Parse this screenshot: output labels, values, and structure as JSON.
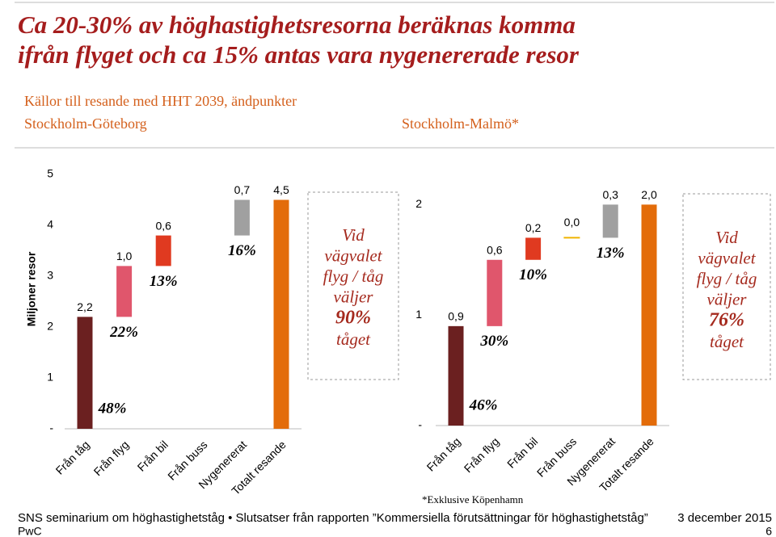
{
  "slide": {
    "title_lines": [
      "Ca 20-30% av höghastighetsresorna beräknas komma",
      "ifrån flyget och ca 15% antas vara nygenererade resor"
    ],
    "subtitle": "Källor till resande med HHT 2039, ändpunkter",
    "footnote": "*Exklusive Köpenhamn",
    "footer": "SNS seminarium om höghastighetståg • Slutsatser från rapporten ”Kommersiella förutsättningar för höghastighetståg”",
    "date": "3 december 2015",
    "company": "PwC",
    "page_number": "6"
  },
  "chart_data": [
    {
      "type": "waterfall",
      "title": "Stockholm-Göteborg",
      "y_label": "Miljoner resor",
      "categories": [
        "Från tåg",
        "Från flyg",
        "Från bil",
        "Från buss",
        "Nygenererat",
        "Totalt resande"
      ],
      "values": [
        2.2,
        1.0,
        0.6,
        null,
        0.7,
        4.5
      ],
      "value_labels": [
        "2,2",
        "1,0",
        "0,6",
        null,
        "0,7",
        "4,5"
      ],
      "shares": [
        48,
        22,
        13,
        null,
        16,
        null
      ],
      "share_labels": [
        "48%",
        "22%",
        "13%",
        null,
        "16%",
        null
      ],
      "colors": [
        "#6b2020",
        "#e0566c",
        "#e03a20",
        "#f0b400",
        "#a0a0a0",
        "#e36c0a"
      ],
      "ylim": [
        0,
        5
      ],
      "yticks": [
        {
          "value": 0,
          "label": "-"
        },
        1,
        2,
        3,
        4,
        5
      ],
      "note_lines": [
        "Vid",
        "vägvalet",
        "flyg / tåg",
        "väljer",
        "90%",
        "tåget"
      ]
    },
    {
      "type": "waterfall",
      "title": "Stockholm-Malmö*",
      "categories": [
        "Från tåg",
        "Från flyg",
        "Från bil",
        "Från buss",
        "Nygenererat",
        "Totalt resande"
      ],
      "values": [
        0.9,
        0.6,
        0.2,
        0.0,
        0.3,
        2.0
      ],
      "value_labels": [
        "0,9",
        "0,6",
        "0,2",
        "0,0",
        "0,3",
        "2,0"
      ],
      "shares": [
        46,
        30,
        10,
        null,
        13,
        null
      ],
      "share_labels": [
        "46%",
        "30%",
        "10%",
        null,
        "13%",
        null
      ],
      "colors": [
        "#6b2020",
        "#e0566c",
        "#e03a20",
        "#f0b400",
        "#a0a0a0",
        "#e36c0a"
      ],
      "ylim": [
        0,
        2.2
      ],
      "yticks": [
        {
          "value": 0,
          "label": "-"
        },
        1,
        2
      ],
      "note_lines": [
        "Vid",
        "vägvalet",
        "flyg / tåg",
        "väljer",
        "76%",
        "tåget"
      ]
    }
  ]
}
